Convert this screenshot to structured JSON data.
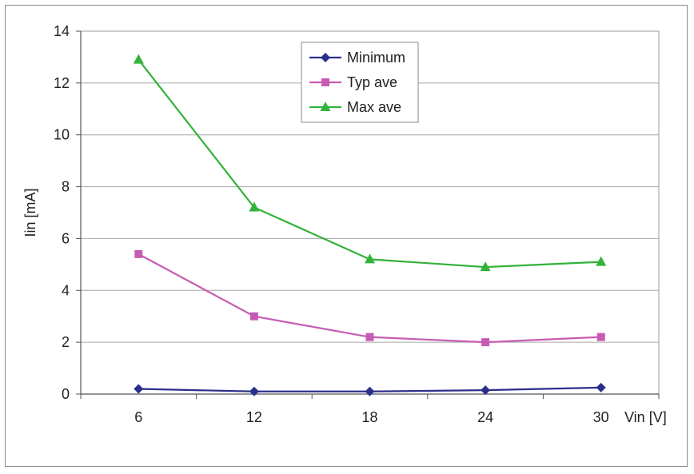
{
  "chart_data": {
    "type": "line",
    "title": "",
    "xlabel": "Vin [V]",
    "ylabel": "Iin [mA]",
    "ylim": [
      0,
      14
    ],
    "yticks": [
      0,
      2,
      4,
      6,
      8,
      10,
      12,
      14
    ],
    "x": [
      6,
      12,
      18,
      24,
      30
    ],
    "grid": "horizontal",
    "legend_position": "top-center",
    "series": [
      {
        "name": "Minimum",
        "color": "#2b2f8c",
        "marker": "diamond",
        "values": [
          0.2,
          0.1,
          0.1,
          0.15,
          0.25
        ]
      },
      {
        "name": "Typ ave",
        "color": "#c75bb4",
        "marker": "square",
        "values": [
          5.4,
          3.0,
          2.2,
          2.0,
          2.2
        ]
      },
      {
        "name": "Max ave",
        "color": "#33b23a",
        "marker": "triangle",
        "values": [
          12.9,
          7.2,
          5.2,
          4.9,
          5.1
        ]
      }
    ]
  }
}
